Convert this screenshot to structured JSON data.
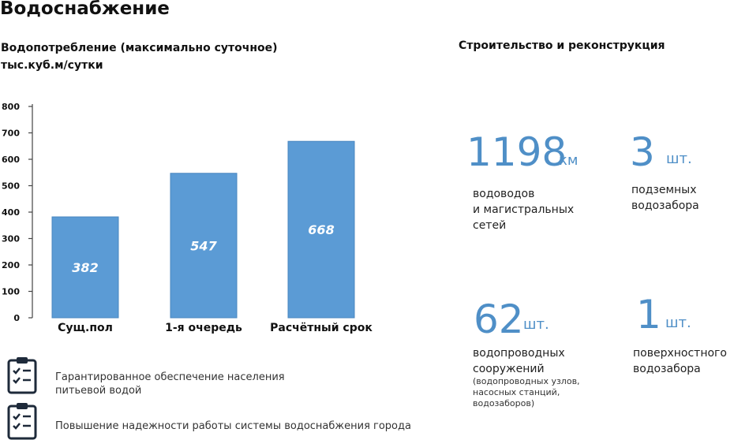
{
  "page": {
    "title": "Водоснабжение",
    "chart_title_line1": "Водопотребление  (максимально суточное)",
    "chart_title_line2": "тыс.куб.м/сутки",
    "right_title": "Строительство и реконструкция"
  },
  "chart_data": {
    "type": "bar",
    "categories": [
      "Сущ.пол",
      "1-я очередь",
      "Расчётный срок"
    ],
    "values": [
      382,
      547,
      668
    ],
    "value_labels": [
      "382",
      "547",
      "668"
    ],
    "title": "Водопотребление  (максимально суточное) тыс.куб.м/сутки",
    "xlabel": "",
    "ylabel": "",
    "ylim": [
      0,
      800
    ],
    "yticks": [
      0,
      100,
      200,
      300,
      400,
      500,
      600,
      700,
      800
    ],
    "grid": false,
    "bar_color": "#5b9bd5"
  },
  "stats": [
    {
      "number": "1198",
      "unit": "км",
      "desc1": "водоводов",
      "desc2": "и магистральных",
      "desc3": "сетей"
    },
    {
      "number": "3",
      "unit": "шт.",
      "desc1": "подземных",
      "desc2": "водозабора"
    },
    {
      "number": "62",
      "unit": "шт.",
      "desc1": "водопроводных",
      "desc2": "сооружений",
      "note1": "(водопроводных узлов,",
      "note2": "насосных станций,",
      "note3": "водозаборов)"
    },
    {
      "number": "1",
      "unit": "шт.",
      "desc1": "поверхностного",
      "desc2": "водозабора"
    }
  ],
  "bullets": [
    {
      "icon": "clipboard-checklist-icon",
      "line1": "Гарантированное обеспечение населения",
      "line2": "питьевой водой"
    },
    {
      "icon": "clipboard-checklist-icon",
      "line1": "Повышение надежности работы системы водоснабжения города"
    }
  ],
  "colors": {
    "accent": "#4f8fc7",
    "bar": "#5b9bd5"
  }
}
